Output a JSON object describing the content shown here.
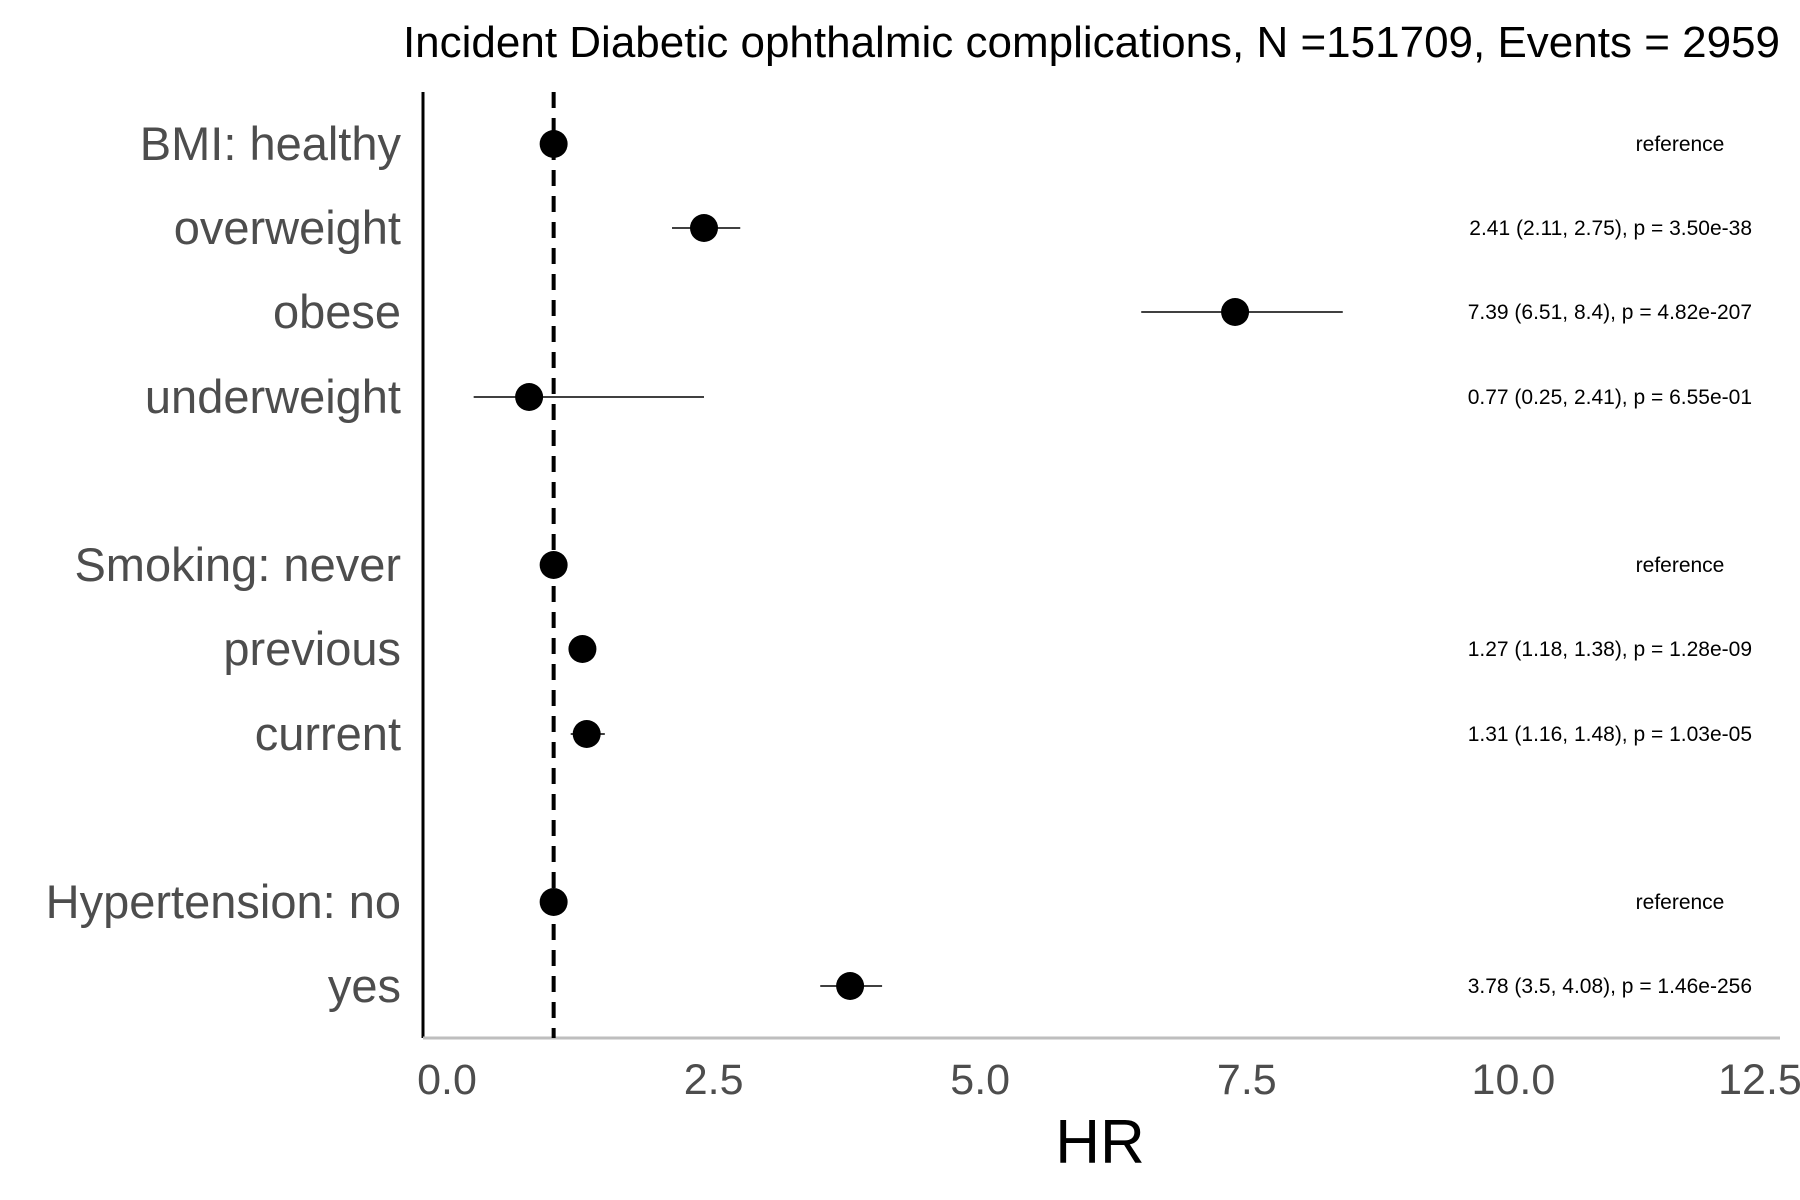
{
  "chart_data": {
    "type": "forest",
    "title": "Incident Diabetic ophthalmic complications, N =151709, Events = 2959",
    "xlabel": "HR",
    "xlim": [
      0,
      12.5
    ],
    "xticks": [
      "0.0",
      "2.5",
      "5.0",
      "7.5",
      "10.0",
      "12.5"
    ],
    "reference_line": 1,
    "rows": [
      {
        "label": "BMI: healthy",
        "hr": 1,
        "lo": null,
        "hi": null,
        "text": "reference"
      },
      {
        "label": "overweight",
        "hr": 2.41,
        "lo": 2.11,
        "hi": 2.75,
        "text": "2.41 (2.11, 2.75), p = 3.50e-38"
      },
      {
        "label": "obese",
        "hr": 7.39,
        "lo": 6.51,
        "hi": 8.4,
        "text": "7.39 (6.51, 8.4), p = 4.82e-207"
      },
      {
        "label": "underweight",
        "hr": 0.77,
        "lo": 0.25,
        "hi": 2.41,
        "text": "0.77 (0.25, 2.41), p = 6.55e-01"
      },
      {
        "label": "Smoking: never",
        "hr": 1,
        "lo": null,
        "hi": null,
        "text": "reference"
      },
      {
        "label": "previous",
        "hr": 1.27,
        "lo": 1.18,
        "hi": 1.38,
        "text": "1.27 (1.18, 1.38), p = 1.28e-09"
      },
      {
        "label": "current",
        "hr": 1.31,
        "lo": 1.16,
        "hi": 1.48,
        "text": "1.31 (1.16, 1.48), p = 1.03e-05"
      },
      {
        "label": "Hypertension: no",
        "hr": 1,
        "lo": null,
        "hi": null,
        "text": "reference"
      },
      {
        "label": "yes",
        "hr": 3.78,
        "lo": 3.5,
        "hi": 4.08,
        "text": "3.78 (3.5, 4.08), p = 1.46e-256"
      }
    ]
  }
}
